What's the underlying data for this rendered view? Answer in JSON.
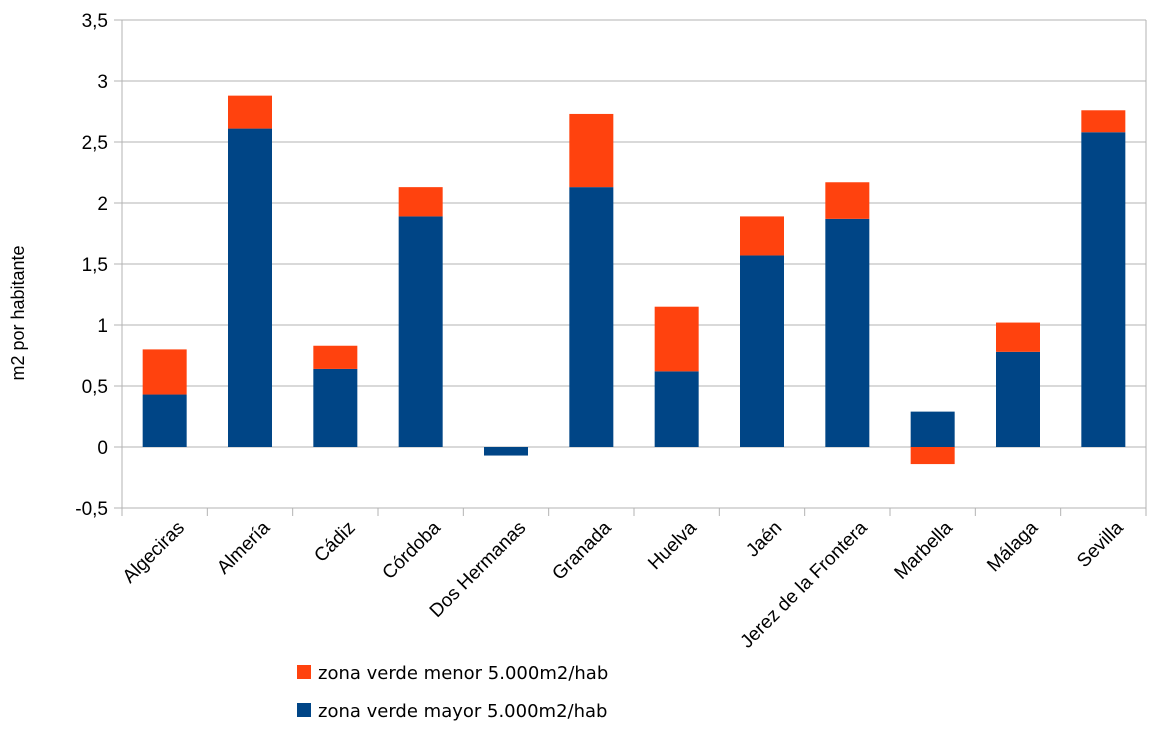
{
  "chart_data": {
    "type": "bar",
    "stacked": true,
    "ylabel": "m2 por habitante",
    "xlabel": "",
    "title": "",
    "ylim": [
      -0.5,
      3.5
    ],
    "ytick_step": 0.5,
    "grid": "horizontal",
    "legend_position": "bottom",
    "categories": [
      "Algeciras",
      "Almería",
      "Cádiz",
      "Córdoba",
      "Dos Hermanas",
      "Granada",
      "Huelva",
      "Jaén",
      "Jerez de la Frontera",
      "Marbella",
      "Málaga",
      "Sevilla"
    ],
    "series": [
      {
        "name": "zona verde mayor 5.000m2/hab",
        "color": "#004586",
        "values": [
          0.43,
          2.61,
          0.64,
          1.89,
          -0.07,
          2.13,
          0.62,
          1.57,
          1.87,
          0.29,
          0.78,
          2.58
        ]
      },
      {
        "name": "zona verde menor 5.000m2/hab",
        "color": "#ff420e",
        "values": [
          0.37,
          0.27,
          0.19,
          0.24,
          0.0,
          0.6,
          0.53,
          0.32,
          0.3,
          -0.14,
          0.24,
          0.18
        ]
      }
    ],
    "legend_entries": [
      {
        "label": "zona verde menor 5.000m2/hab",
        "color": "#ff420e"
      },
      {
        "label": "zona verde mayor 5.000m2/hab",
        "color": "#004586"
      }
    ]
  }
}
